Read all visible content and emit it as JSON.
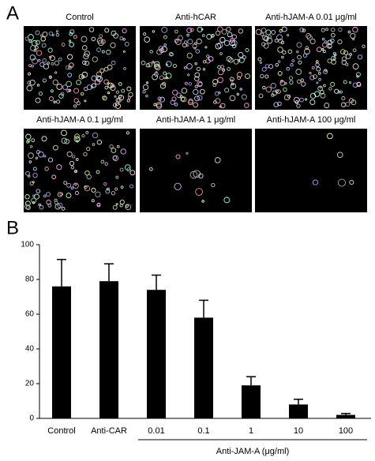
{
  "panel_a": {
    "label": "A",
    "images": [
      {
        "caption": "Control"
      },
      {
        "caption": "Anti-hCAR"
      },
      {
        "caption": "Anti-hJAM-A 0.01 μg/ml"
      },
      {
        "caption": "Anti-hJAM-A 0.1 μg/ml"
      },
      {
        "caption": "Anti-hJAM-A 1 μg/ml"
      },
      {
        "caption": "Anti-hJAM-A 100 μg/ml"
      }
    ]
  },
  "chart_data": {
    "type": "bar",
    "panel_label": "B",
    "categories": [
      "Control",
      "Anti-CAR",
      "0.01",
      "0.1",
      "1",
      "10",
      "100"
    ],
    "values": [
      76,
      79,
      74,
      58,
      19,
      8,
      2
    ],
    "errors": [
      15.5,
      10,
      8.5,
      10,
      5,
      3,
      0.8
    ],
    "group_label": "Anti-JAM-A (μg/ml)",
    "color": "#000000",
    "ylim": [
      0,
      100
    ],
    "yticks": [
      0,
      20,
      40,
      60,
      80,
      100
    ]
  }
}
